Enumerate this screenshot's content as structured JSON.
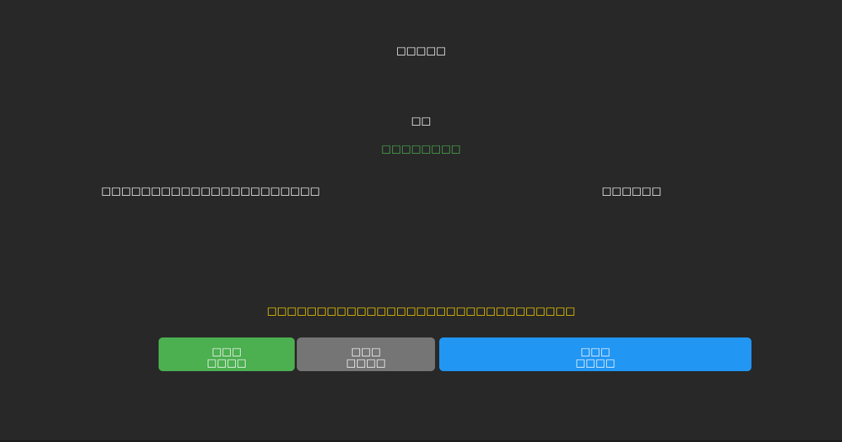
{
  "header": {
    "title": "□□□□□"
  },
  "status": {
    "label": "□□",
    "highlight": "□□□□□□□□"
  },
  "info": {
    "left": "□□□□□□□□□□□□□□□□□□□□□□",
    "right": "□□□□□□"
  },
  "message": {
    "text": "□□□□□□□□□□□□□□□□□□□□□□□□□□□□□□□"
  },
  "buttons": {
    "green": {
      "line1": "□□□",
      "line2": "□□□□"
    },
    "gray": {
      "line1": "□□□",
      "line2": "□□□□"
    },
    "blue": {
      "line1": "□□□",
      "line2": "□□□□"
    }
  },
  "colors": {
    "background": "#282828",
    "text_white": "#ffffff",
    "highlight_green": "#4caf50",
    "message_yellow": "#ffd700",
    "button_green": "#4caf50",
    "button_gray": "#757575",
    "button_blue": "#2196f3"
  }
}
